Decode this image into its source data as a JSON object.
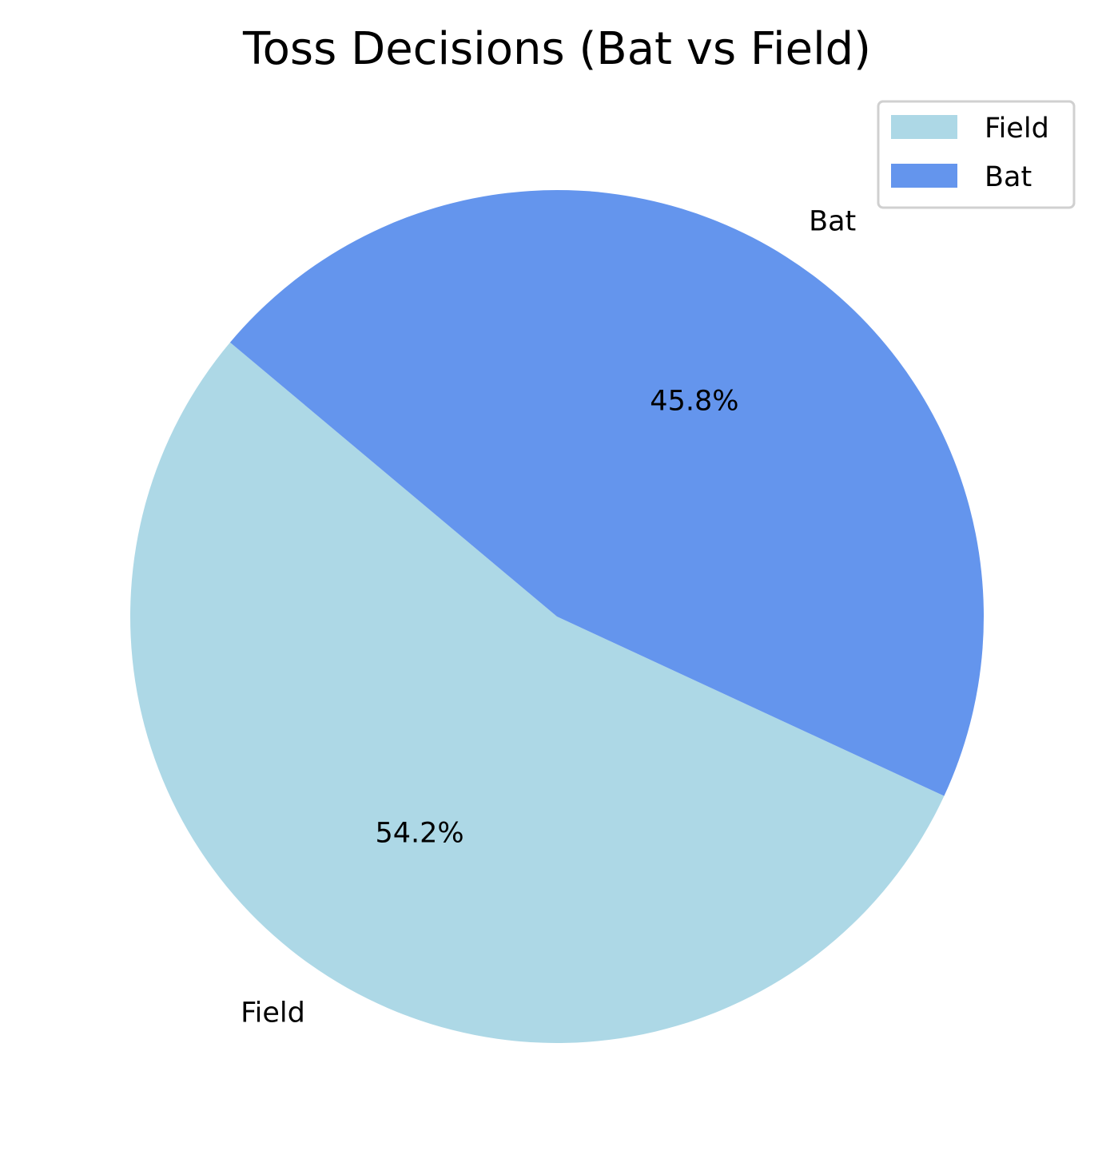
{
  "chart_data": {
    "type": "pie",
    "title": "Toss Decisions (Bat vs Field)",
    "slices": [
      {
        "label": "Field",
        "value": 54.2,
        "pct_label": "54.2%",
        "color": "#ADD8E6"
      },
      {
        "label": "Bat",
        "value": 45.8,
        "pct_label": "45.8%",
        "color": "#6495ED"
      }
    ],
    "legend": {
      "placement": "upper-right",
      "entries": [
        "Field",
        "Bat"
      ]
    }
  }
}
